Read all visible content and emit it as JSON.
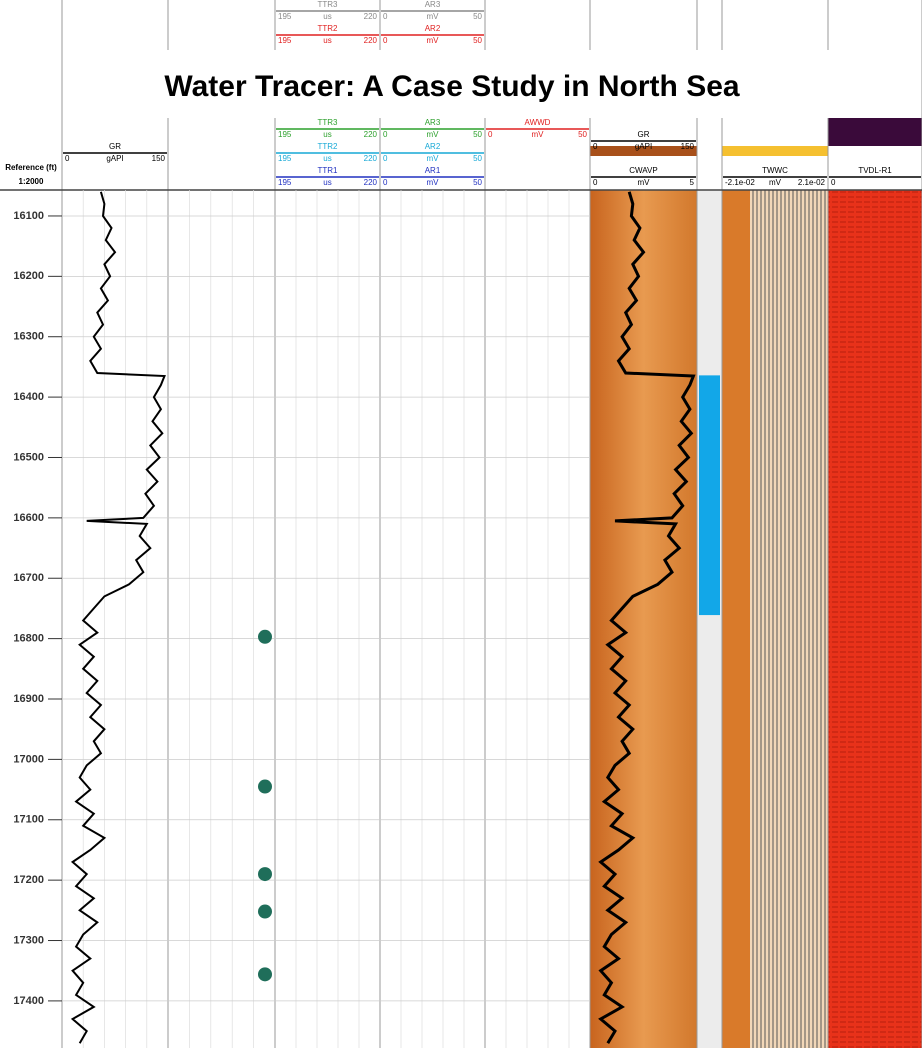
{
  "chart_data": {
    "type": "well_log",
    "title": "Water Tracer: A Case Study in North Sea",
    "depth_label": "Reference (ft)",
    "scale_label": "1:2000",
    "ylim": [
      16057,
      17478
    ],
    "yticks": [
      16100,
      16200,
      16300,
      16400,
      16500,
      16600,
      16700,
      16800,
      16900,
      17000,
      17100,
      17200,
      17300,
      17400
    ],
    "depth": [
      16060,
      16080,
      16100,
      16120,
      16140,
      16160,
      16180,
      16200,
      16220,
      16240,
      16260,
      16280,
      16300,
      16320,
      16340,
      16360,
      16365,
      16380,
      16400,
      16420,
      16440,
      16460,
      16480,
      16500,
      16520,
      16540,
      16560,
      16580,
      16600,
      16605,
      16610,
      16630,
      16650,
      16670,
      16690,
      16710,
      16730,
      16750,
      16770,
      16790,
      16810,
      16830,
      16850,
      16870,
      16890,
      16910,
      16930,
      16950,
      16970,
      16990,
      17010,
      17030,
      17050,
      17070,
      17090,
      17110,
      17130,
      17150,
      17170,
      17190,
      17210,
      17230,
      17250,
      17270,
      17290,
      17310,
      17330,
      17350,
      17370,
      17390,
      17410,
      17430,
      17450,
      17470
    ],
    "series": [
      {
        "name": "GR",
        "color": "#000000",
        "xlim": [
          0,
          150
        ],
        "values": [
          55,
          60,
          58,
          70,
          62,
          75,
          60,
          68,
          55,
          65,
          50,
          58,
          45,
          55,
          40,
          50,
          145,
          140,
          130,
          140,
          128,
          142,
          125,
          138,
          120,
          135,
          118,
          130,
          115,
          35,
          120,
          110,
          125,
          105,
          115,
          95,
          60,
          45,
          30,
          50,
          25,
          45,
          30,
          50,
          35,
          55,
          40,
          60,
          45,
          55,
          35,
          25,
          40,
          20,
          45,
          30,
          60,
          40,
          15,
          35,
          20,
          45,
          25,
          50,
          30,
          20,
          40,
          15,
          30,
          20,
          45,
          15,
          35,
          25
        ]
      }
    ],
    "markers": {
      "color": "#1f6e5a",
      "depths": [
        16797,
        17045,
        17190,
        17252,
        17356
      ]
    },
    "interval": {
      "color": "#12a7e8",
      "depths": [
        16364,
        16761
      ]
    },
    "headers": [
      {
        "name": "GR",
        "min": "0",
        "unit": "gAPI",
        "max": "150",
        "color": "#000000"
      },
      {
        "name": "TTR3",
        "min": "195",
        "unit": "us",
        "max": "220",
        "color": "#888888"
      },
      {
        "name": "AR3",
        "min": "0",
        "unit": "mV",
        "max": "50",
        "color": "#888888"
      },
      {
        "name": "TTR2",
        "min": "195",
        "unit": "us",
        "max": "220",
        "color": "#e02020"
      },
      {
        "name": "AR2",
        "min": "0",
        "unit": "mV",
        "max": "50",
        "color": "#e02020"
      },
      {
        "name": "TTR3",
        "min": "195",
        "unit": "us",
        "max": "220",
        "color": "#2ca02c"
      },
      {
        "name": "AR3",
        "min": "0",
        "unit": "mV",
        "max": "50",
        "color": "#2ca02c"
      },
      {
        "name": "AWWD",
        "min": "0",
        "unit": "mV",
        "max": "50",
        "color": "#e02020"
      },
      {
        "name": "TTR2",
        "min": "195",
        "unit": "us",
        "max": "220",
        "color": "#17a9d6"
      },
      {
        "name": "AR2",
        "min": "0",
        "unit": "mV",
        "max": "50",
        "color": "#17a9d6"
      },
      {
        "name": "TTR1",
        "min": "195",
        "unit": "us",
        "max": "220",
        "color": "#2030c0"
      },
      {
        "name": "AR1",
        "min": "0",
        "unit": "mV",
        "max": "50",
        "color": "#2030c0"
      },
      {
        "name": "GR",
        "min": "0",
        "unit": "gAPI",
        "max": "150",
        "color": "#000000"
      },
      {
        "name": "CWAVP",
        "min": "0",
        "unit": "mV",
        "max": "5",
        "color": "#000000"
      },
      {
        "name": "TWWC",
        "min": "-2.1e-02",
        "unit": "mV",
        "max": "2.1e-02",
        "color": "#000000"
      },
      {
        "name": "TVDL-R1",
        "min": "0",
        "unit": "",
        "max": "",
        "color": "#000000"
      }
    ]
  }
}
